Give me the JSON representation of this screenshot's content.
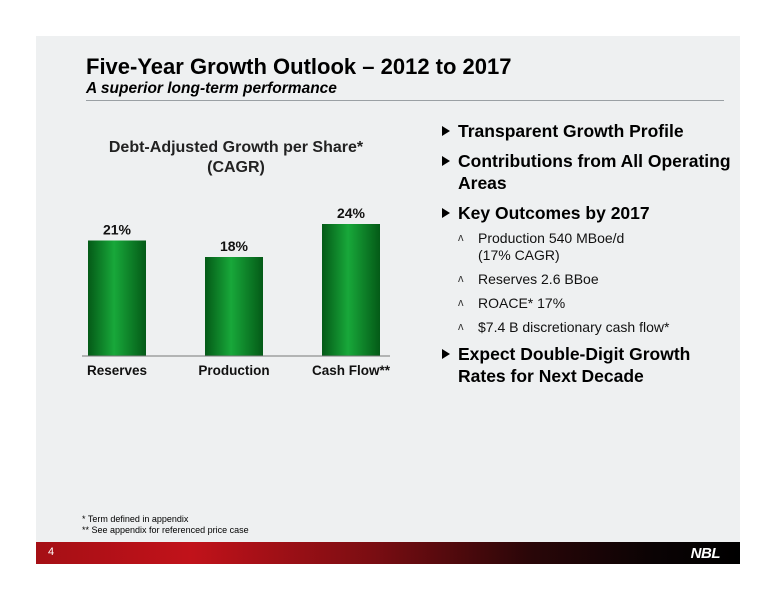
{
  "header": {
    "title": "Five-Year Growth Outlook – 2012 to 2017",
    "subtitle": "A superior long-term performance"
  },
  "chart_title_line1": "Debt-Adjusted Growth per Share*",
  "chart_title_line2": "(CAGR)",
  "chart_data": {
    "type": "bar",
    "title": "Debt-Adjusted Growth per Share* (CAGR)",
    "categories": [
      "Reserves",
      "Production",
      "Cash Flow**"
    ],
    "values": [
      21,
      18,
      24
    ],
    "value_labels": [
      "21%",
      "18%",
      "24%"
    ],
    "unit": "%",
    "ylim": [
      0,
      24
    ],
    "grid": false,
    "legend": "none",
    "bar_color": "#0a8a2a"
  },
  "bullets": [
    {
      "text": "Transparent Growth Profile",
      "subs": []
    },
    {
      "text": "Contributions from All Operating Areas",
      "subs": []
    },
    {
      "text": "Key Outcomes by 2017",
      "subs": [
        {
          "line1": "Production 540 MBoe/d",
          "line2": "(17% CAGR)"
        },
        {
          "line1": "Reserves 2.6 BBoe",
          "line2": ""
        },
        {
          "line1": "ROACE* 17%",
          "line2": ""
        },
        {
          "line1": "$7.4 B discretionary cash flow*",
          "line2": ""
        }
      ]
    },
    {
      "text": "Expect Double-Digit Growth Rates for Next Decade",
      "subs": []
    }
  ],
  "footnotes": [
    "* Term defined in appendix",
    "** See appendix for referenced price case"
  ],
  "footer": {
    "page_number": "4",
    "logo": "NBL"
  }
}
